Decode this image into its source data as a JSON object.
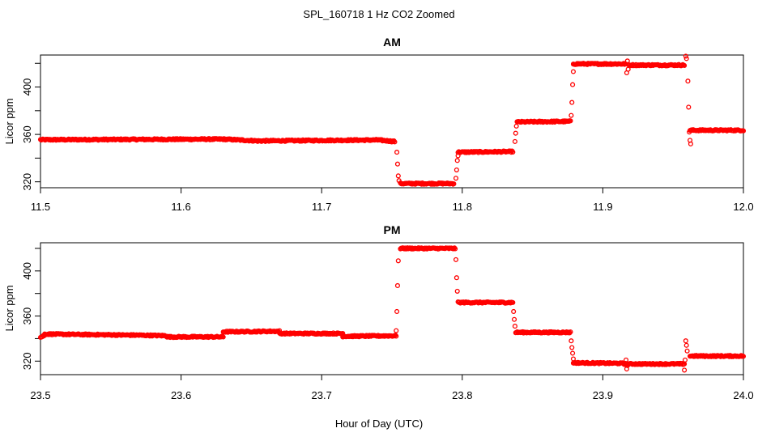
{
  "figure": {
    "title": "SPL_160718  1 Hz CO2 Zoomed",
    "xlabel": "Hour of Day (UTC)"
  },
  "colors": {
    "points": "#ff0000",
    "axis": "#000000",
    "background": "#ffffff"
  },
  "chart_data": [
    {
      "type": "scatter",
      "title": "AM",
      "xlabel": "Hour of Day (UTC)",
      "ylabel": "Licor ppm",
      "xlim": [
        11.5,
        12.0
      ],
      "ylim": [
        315,
        427
      ],
      "xticks": [
        11.5,
        11.6,
        11.7,
        11.8,
        11.9,
        12.0
      ],
      "xtick_labels": [
        "11.5",
        "11.6",
        "11.7",
        "11.8",
        "11.9",
        "12.0"
      ],
      "yticks": [
        320,
        340,
        360,
        380,
        400,
        420
      ],
      "ytick_labels": [
        "320",
        "360",
        "400"
      ],
      "marker": "open-circle",
      "segments": [
        {
          "x_start": 11.5,
          "x_end": 11.63,
          "value_start": 355.5,
          "value_end": 356.0
        },
        {
          "x_start": 11.63,
          "x_end": 11.655,
          "value_start": 356.0,
          "value_end": 354.5
        },
        {
          "x_start": 11.655,
          "x_end": 11.74,
          "value_start": 354.5,
          "value_end": 355.3
        },
        {
          "x_start": 11.74,
          "x_end": 11.752,
          "value_start": 355.3,
          "value_end": 354.0
        },
        {
          "x_start": 11.756,
          "x_end": 11.794,
          "value_start": 318.5,
          "value_end": 318.5
        },
        {
          "x_start": 11.797,
          "x_end": 11.836,
          "value_start": 345.0,
          "value_end": 345.5
        },
        {
          "x_start": 11.839,
          "x_end": 11.877,
          "value_start": 370.5,
          "value_end": 371.0
        },
        {
          "x_start": 11.879,
          "x_end": 11.916,
          "value_start": 419.5,
          "value_end": 419.5
        },
        {
          "x_start": 11.918,
          "x_end": 11.958,
          "value_start": 418.5,
          "value_end": 418.5
        },
        {
          "x_start": 11.962,
          "x_end": 12.0,
          "value_start": 363.5,
          "value_end": 363.5
        }
      ],
      "transition_points": [
        [
          11.7535,
          345
        ],
        [
          11.754,
          335
        ],
        [
          11.7545,
          325
        ],
        [
          11.755,
          321
        ],
        [
          11.7955,
          323
        ],
        [
          11.796,
          330
        ],
        [
          11.7965,
          338
        ],
        [
          11.797,
          342
        ],
        [
          11.8375,
          354
        ],
        [
          11.838,
          361
        ],
        [
          11.8385,
          367
        ],
        [
          11.8775,
          376
        ],
        [
          11.878,
          387
        ],
        [
          11.8785,
          402
        ],
        [
          11.879,
          413
        ],
        [
          11.917,
          412
        ],
        [
          11.9175,
          422
        ],
        [
          11.918,
          415
        ],
        [
          11.959,
          426
        ],
        [
          11.9595,
          424
        ],
        [
          11.9605,
          405
        ],
        [
          11.961,
          383
        ],
        [
          11.9615,
          362
        ],
        [
          11.962,
          355
        ],
        [
          11.9625,
          352
        ]
      ]
    },
    {
      "type": "scatter",
      "title": "PM",
      "xlabel": "Hour of Day (UTC)",
      "ylabel": "Licor ppm",
      "xlim": [
        23.5,
        24.0
      ],
      "ylim": [
        308,
        425
      ],
      "xticks": [
        23.5,
        23.6,
        23.7,
        23.8,
        23.9,
        24.0
      ],
      "xtick_labels": [
        "23.5",
        "23.6",
        "23.7",
        "23.8",
        "23.9",
        "24.0"
      ],
      "yticks": [
        320,
        340,
        360,
        380,
        400,
        420
      ],
      "ytick_labels": [
        "320",
        "360",
        "400"
      ],
      "marker": "open-circle",
      "segments": [
        {
          "x_start": 23.5,
          "x_end": 23.503,
          "value_start": 341.0,
          "value_end": 343.0
        },
        {
          "x_start": 23.503,
          "x_end": 23.57,
          "value_start": 344.0,
          "value_end": 343.0
        },
        {
          "x_start": 23.57,
          "x_end": 23.59,
          "value_start": 343.0,
          "value_end": 342.5
        },
        {
          "x_start": 23.59,
          "x_end": 23.63,
          "value_start": 341.5,
          "value_end": 341.5
        },
        {
          "x_start": 23.63,
          "x_end": 23.67,
          "value_start": 346.0,
          "value_end": 346.5
        },
        {
          "x_start": 23.67,
          "x_end": 23.715,
          "value_start": 344.5,
          "value_end": 344.5
        },
        {
          "x_start": 23.715,
          "x_end": 23.753,
          "value_start": 342.0,
          "value_end": 342.5
        },
        {
          "x_start": 23.756,
          "x_end": 23.795,
          "value_start": 420.0,
          "value_end": 420.0
        },
        {
          "x_start": 23.797,
          "x_end": 23.836,
          "value_start": 372.0,
          "value_end": 372.0
        },
        {
          "x_start": 23.838,
          "x_end": 23.877,
          "value_start": 345.5,
          "value_end": 345.5
        },
        {
          "x_start": 23.879,
          "x_end": 23.915,
          "value_start": 318.5,
          "value_end": 318.0
        },
        {
          "x_start": 23.915,
          "x_end": 23.958,
          "value_start": 317.5,
          "value_end": 317.5
        },
        {
          "x_start": 23.962,
          "x_end": 24.0,
          "value_start": 324.5,
          "value_end": 324.5
        }
      ],
      "transition_points": [
        [
          23.753,
          347
        ],
        [
          23.7535,
          364
        ],
        [
          23.754,
          387
        ],
        [
          23.7545,
          409
        ],
        [
          23.7955,
          410
        ],
        [
          23.796,
          394
        ],
        [
          23.7965,
          382
        ],
        [
          23.8365,
          364
        ],
        [
          23.837,
          357
        ],
        [
          23.8375,
          351
        ],
        [
          23.8775,
          338
        ],
        [
          23.878,
          332
        ],
        [
          23.8785,
          327
        ],
        [
          23.879,
          322
        ],
        [
          23.9165,
          321
        ],
        [
          23.917,
          313
        ],
        [
          23.9175,
          316
        ],
        [
          23.958,
          312
        ],
        [
          23.9585,
          321
        ],
        [
          23.959,
          338
        ],
        [
          23.9595,
          334
        ],
        [
          23.96,
          329
        ]
      ]
    }
  ]
}
